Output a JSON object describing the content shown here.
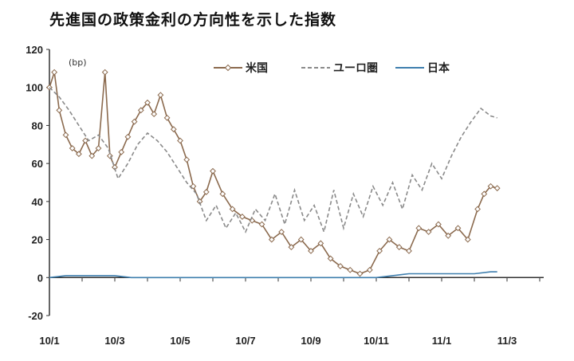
{
  "chart_data": {
    "type": "line",
    "title": "先進国の政策金利の方向性を示した指数",
    "annotation": "(bp)",
    "xlabel": "",
    "ylabel": "",
    "ylim": [
      -20,
      120
    ],
    "y_ticks": [
      -20,
      0,
      20,
      40,
      60,
      80,
      100,
      120
    ],
    "x_tick_labels": [
      "10/1",
      "10/3",
      "10/5",
      "10/7",
      "10/9",
      "10/11",
      "11/1",
      "11/3"
    ],
    "x_tick_months": [
      0,
      2,
      4,
      6,
      8,
      10,
      12,
      14
    ],
    "xlim": [
      0,
      15
    ],
    "grid": false,
    "legend_position": "top-right",
    "series": [
      {
        "name": "米国",
        "color": "#8b6a4e",
        "style": "solid-diamond",
        "x": [
          0,
          0.15,
          0.3,
          0.5,
          0.7,
          0.9,
          1.1,
          1.3,
          1.5,
          1.7,
          1.85,
          2.0,
          2.2,
          2.4,
          2.6,
          2.8,
          3.0,
          3.2,
          3.4,
          3.6,
          3.8,
          4.0,
          4.2,
          4.4,
          4.6,
          4.8,
          5.0,
          5.3,
          5.6,
          5.9,
          6.2,
          6.5,
          6.8,
          7.1,
          7.4,
          7.7,
          8.0,
          8.3,
          8.6,
          8.9,
          9.2,
          9.5,
          9.8,
          10.1,
          10.4,
          10.7,
          11.0,
          11.3,
          11.6,
          11.9,
          12.2,
          12.5,
          12.8,
          13.1,
          13.3,
          13.5,
          13.7
        ],
        "values": [
          100,
          108,
          88,
          75,
          68,
          65,
          72,
          64,
          68,
          108,
          64,
          58,
          66,
          74,
          82,
          88,
          92,
          86,
          96,
          84,
          78,
          72,
          62,
          48,
          40,
          45,
          56,
          44,
          36,
          32,
          30,
          28,
          20,
          24,
          16,
          20,
          14,
          18,
          10,
          6,
          4,
          2,
          4,
          14,
          20,
          16,
          14,
          26,
          24,
          28,
          22,
          26,
          20,
          36,
          44,
          48,
          47
        ]
      },
      {
        "name": "ユーロ圏",
        "color": "#8a8a8a",
        "style": "dashed",
        "x": [
          0,
          0.3,
          0.6,
          0.9,
          1.2,
          1.5,
          1.8,
          2.1,
          2.4,
          2.7,
          3.0,
          3.3,
          3.6,
          3.9,
          4.2,
          4.5,
          4.8,
          5.1,
          5.4,
          5.7,
          6.0,
          6.3,
          6.6,
          6.9,
          7.2,
          7.5,
          7.8,
          8.1,
          8.4,
          8.7,
          9.0,
          9.3,
          9.6,
          9.9,
          10.2,
          10.5,
          10.8,
          11.1,
          11.4,
          11.7,
          12.0,
          12.3,
          12.6,
          12.9,
          13.2,
          13.5,
          13.7
        ],
        "values": [
          100,
          95,
          88,
          80,
          72,
          75,
          68,
          52,
          60,
          70,
          76,
          72,
          66,
          58,
          50,
          44,
          30,
          38,
          26,
          34,
          24,
          36,
          30,
          44,
          28,
          46,
          30,
          38,
          24,
          46,
          26,
          44,
          32,
          48,
          38,
          50,
          36,
          54,
          46,
          60,
          52,
          64,
          74,
          82,
          89,
          85,
          84
        ]
      },
      {
        "name": "日本",
        "color": "#3f7fae",
        "style": "solid",
        "x": [
          0,
          0.5,
          1.0,
          1.5,
          2.0,
          2.5,
          3.0,
          3.5,
          4.0,
          4.5,
          5.0,
          5.5,
          6.0,
          6.5,
          7.0,
          7.5,
          8.0,
          8.5,
          9.0,
          9.5,
          10.0,
          10.5,
          11.0,
          11.5,
          12.0,
          12.5,
          13.0,
          13.5,
          13.7
        ],
        "values": [
          0,
          1,
          1,
          1,
          1,
          0,
          0,
          0,
          0,
          0,
          0,
          0,
          0,
          0,
          0,
          0,
          0,
          0,
          0,
          0,
          0,
          1,
          2,
          2,
          2,
          2,
          2,
          3,
          3
        ]
      }
    ]
  }
}
